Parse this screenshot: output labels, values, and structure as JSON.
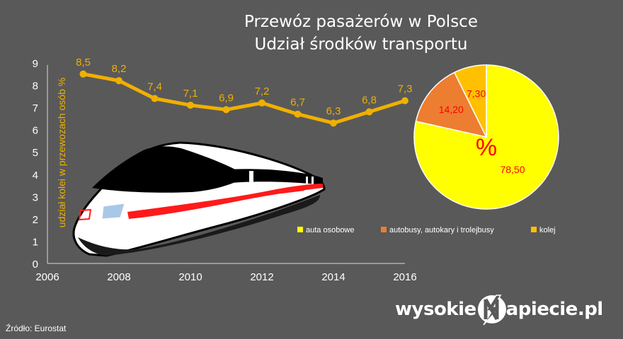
{
  "title": {
    "line1": "Przewóz pasażerów w Polsce",
    "line2": "Udział środków transportu"
  },
  "source": "Źródło: Eurostat",
  "logo": {
    "left_text": "wysokie",
    "right_text": "apiecie.pl"
  },
  "chart_data": [
    {
      "type": "line",
      "ylabel": "udział kolei w przewozach osób %",
      "x_ticks": [
        "2006",
        "2008",
        "2010",
        "2012",
        "2014",
        "2016"
      ],
      "y_ticks": [
        "0",
        "1",
        "2",
        "3",
        "4",
        "5",
        "6",
        "7",
        "8",
        "9"
      ],
      "xlim": [
        2006,
        2016
      ],
      "ylim": [
        0,
        9
      ],
      "x": [
        2007,
        2008,
        2009,
        2010,
        2011,
        2012,
        2013,
        2014,
        2015,
        2016
      ],
      "values": [
        8.5,
        8.2,
        7.4,
        7.1,
        6.9,
        7.2,
        6.7,
        6.3,
        6.8,
        7.3
      ],
      "labels": [
        "8,5",
        "8,2",
        "7,4",
        "7,1",
        "6,9",
        "7,2",
        "6,7",
        "6,3",
        "6,8",
        "7,3"
      ],
      "color": "#f0b000",
      "grid": false
    },
    {
      "type": "pie",
      "center_label": "%",
      "slices": [
        {
          "name": "auta osobowe",
          "value": 78.5,
          "label": "78,50",
          "color": "#ffff00"
        },
        {
          "name": "autobusy, autokary i trolejbusy",
          "value": 14.2,
          "label": "14,20",
          "color": "#ed7d31"
        },
        {
          "name": "kolej",
          "value": 7.3,
          "label": "7,30",
          "color": "#ffc000"
        }
      ],
      "legend_position": "bottom"
    }
  ]
}
